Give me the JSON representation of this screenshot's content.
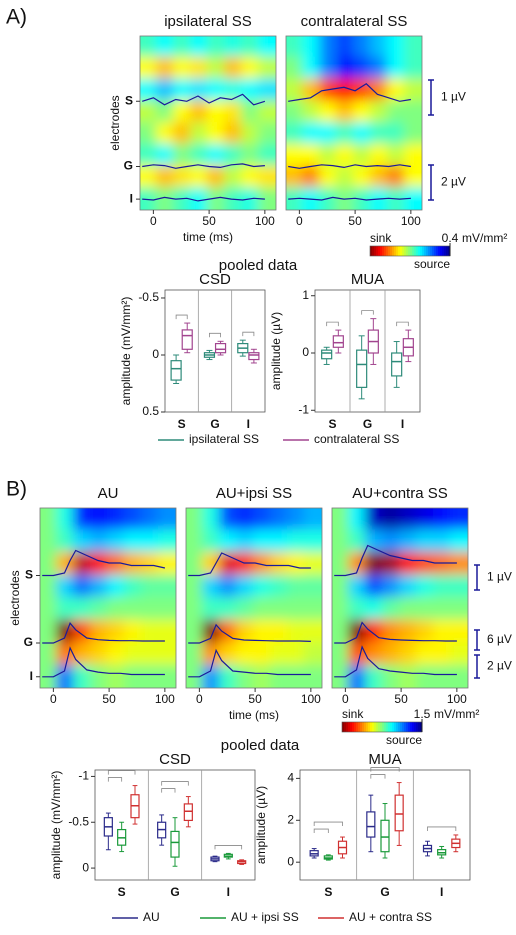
{
  "chart_data": [
    {
      "type": "heatmap",
      "panel": "A)",
      "title": "ipsilateral SS",
      "ylabel": "electrodes",
      "xlabel": "time (ms)",
      "xlim": [
        -12,
        110
      ],
      "xticks": [
        0,
        50,
        100
      ],
      "ylim": [
        0,
        16
      ],
      "yticks": [
        {
          "value": 6,
          "label": "S"
        },
        {
          "value": 12,
          "label": "G"
        },
        {
          "value": 15,
          "label": "I"
        }
      ],
      "clim": [
        -0.4,
        0.4
      ],
      "z": [
        [
          0.05,
          0.1,
          0.05,
          0.1,
          0.05,
          0.08,
          0.05,
          0.1
        ],
        [
          -0.1,
          -0.15,
          -0.1,
          -0.12,
          -0.05,
          -0.15,
          -0.1,
          -0.05
        ],
        [
          0.1,
          0.15,
          0.1,
          0.12,
          0.1,
          0.08,
          0.1,
          0.12
        ],
        [
          -0.05,
          0,
          -0.1,
          -0.15,
          -0.1,
          -0.12,
          0,
          -0.05
        ],
        [
          0,
          -0.1,
          -0.15,
          -0.05,
          -0.1,
          -0.15,
          -0.05,
          0
        ],
        [
          0.05,
          0.1,
          0,
          0.05,
          0.1,
          0.05,
          0,
          0.05
        ],
        [
          -0.1,
          -0.15,
          -0.12,
          -0.1,
          -0.15,
          -0.05,
          -0.1,
          -0.12
        ],
        [
          0.05,
          0,
          0.05,
          0.1,
          0,
          0.05,
          0.08,
          0
        ]
      ],
      "trace_x": [
        -10,
        0,
        10,
        20,
        30,
        40,
        50,
        60,
        70,
        80,
        90,
        100
      ],
      "traces": [
        [
          0,
          0.1,
          -0.1,
          0.05,
          0,
          0.15,
          -0.05,
          0.1,
          0.05,
          0.2,
          -0.1,
          0
        ],
        [
          0,
          0.1,
          0.05,
          -0.1,
          0,
          0.1,
          0,
          -0.05,
          0.1,
          0.15,
          0,
          0.05
        ],
        [
          0,
          -0.05,
          0.1,
          0,
          0.05,
          -0.1,
          0,
          0.1,
          0,
          -0.05,
          0.05,
          0
        ]
      ]
    },
    {
      "type": "heatmap",
      "title": "contralateral SS",
      "xlim": [
        -12,
        110
      ],
      "xticks": [
        0,
        50,
        100
      ],
      "ylim": [
        0,
        16
      ],
      "clim": [
        -0.4,
        0.4
      ],
      "z": [
        [
          0.05,
          0.1,
          0.2,
          0.25,
          0.2,
          0.15,
          0.1,
          0.05
        ],
        [
          0,
          0.1,
          0.2,
          0.3,
          0.25,
          0.2,
          0.1,
          0.05
        ],
        [
          -0.05,
          -0.15,
          -0.25,
          -0.3,
          -0.25,
          -0.2,
          -0.1,
          -0.05
        ],
        [
          0,
          -0.05,
          -0.1,
          -0.15,
          -0.1,
          -0.05,
          0,
          0
        ],
        [
          0.05,
          0.1,
          0.1,
          0.05,
          0.1,
          0.05,
          0.05,
          0
        ],
        [
          -0.1,
          -0.1,
          -0.05,
          -0.1,
          -0.05,
          -0.1,
          -0.05,
          -0.1
        ],
        [
          -0.15,
          -0.2,
          -0.1,
          -0.05,
          -0.1,
          -0.15,
          -0.2,
          -0.1
        ],
        [
          0.05,
          0.1,
          0.05,
          0,
          0.05,
          0.1,
          0.05,
          0.1
        ]
      ],
      "trace_x": [
        -10,
        0,
        10,
        20,
        30,
        40,
        50,
        60,
        70,
        80,
        90,
        100
      ],
      "traces": [
        [
          0,
          0.05,
          0.1,
          0.3,
          0.35,
          0.4,
          0.3,
          0.5,
          0.2,
          0.1,
          0,
          0.05
        ],
        [
          0,
          -0.1,
          0,
          0.1,
          0.05,
          -0.05,
          0.1,
          0,
          0.05,
          0,
          0.1,
          0
        ],
        [
          0,
          0.05,
          0,
          -0.05,
          0.1,
          0,
          0.05,
          -0.05,
          0,
          0.05,
          0,
          0.05
        ]
      ],
      "scalebars": [
        "1 µV",
        "2 µV"
      ],
      "colorbar": {
        "low": "sink",
        "high": "source",
        "unit": "mV/mm²",
        "ticks": [
          0.4
        ]
      }
    },
    {
      "type": "box",
      "suptitle": "pooled data",
      "title": "CSD",
      "ylabel": "amplitude (mV/mm²)",
      "categories": [
        "S",
        "G",
        "I"
      ],
      "ylim": [
        -0.57,
        0.5
      ],
      "yticks": [
        -0.5,
        0,
        0.5
      ],
      "inverted": true,
      "series": [
        {
          "name": "ipsilateral SS",
          "color": "#2e8b7a",
          "boxes": [
            [
              0,
              0.05,
              0.12,
              0.22,
              0.25
            ],
            [
              -0.04,
              -0.02,
              0,
              0.02,
              0.04
            ],
            [
              -0.13,
              -0.1,
              -0.06,
              -0.02,
              0.01
            ]
          ]
        },
        {
          "name": "contralateral SS",
          "color": "#a2458f",
          "boxes": [
            [
              -0.28,
              -0.22,
              -0.17,
              -0.05,
              -0.02
            ],
            [
              -0.12,
              -0.1,
              -0.05,
              -0.02,
              0
            ],
            [
              -0.05,
              -0.02,
              0,
              0.04,
              0.07
            ]
          ]
        }
      ]
    },
    {
      "type": "box",
      "title": "MUA",
      "ylabel": "amplitude (µV)",
      "categories": [
        "S",
        "G",
        "I"
      ],
      "ylim": [
        -1.03,
        1.1
      ],
      "yticks": [
        -1,
        0,
        1
      ],
      "series": [
        {
          "color": "#2e8b7a",
          "boxes": [
            [
              -0.2,
              -0.1,
              0,
              0.05,
              0.1
            ],
            [
              -0.8,
              -0.6,
              -0.2,
              0.05,
              0.3
            ],
            [
              -0.6,
              -0.4,
              -0.15,
              0,
              0.2
            ]
          ]
        },
        {
          "color": "#a2458f",
          "boxes": [
            [
              0,
              0.1,
              0.18,
              0.3,
              0.4
            ],
            [
              -0.2,
              0,
              0.2,
              0.4,
              0.6
            ],
            [
              -0.15,
              -0.05,
              0.1,
              0.25,
              0.4
            ]
          ]
        }
      ]
    },
    {
      "type": "heatmap",
      "panel": "B)",
      "title": "AU",
      "ylabel": "electrodes",
      "xlim": [
        -12,
        110
      ],
      "xticks": [
        0,
        50,
        100
      ],
      "ylim": [
        0,
        16
      ],
      "yticks": [
        {
          "value": 6,
          "label": "S"
        },
        {
          "value": 12,
          "label": "G"
        },
        {
          "value": 15,
          "label": "I"
        }
      ],
      "clim": [
        -1.5,
        1.5
      ],
      "z": [
        [
          0,
          0.3,
          1.0,
          1.1,
          1.0,
          0.9,
          0.8,
          0.7
        ],
        [
          0,
          0.2,
          0.5,
          0.6,
          0.5,
          0.4,
          0.4,
          0.3
        ],
        [
          0,
          -0.6,
          -1.3,
          -1.1,
          -0.8,
          -0.6,
          -0.5,
          -0.4
        ],
        [
          0,
          0.5,
          0.8,
          0.6,
          0.4,
          0.2,
          0.1,
          0.1
        ],
        [
          0,
          0.2,
          0.2,
          0.1,
          0,
          0,
          0,
          0
        ],
        [
          0,
          -1.5,
          -0.9,
          -0.6,
          -0.5,
          -0.4,
          -0.3,
          -0.3
        ],
        [
          0,
          -0.8,
          -0.6,
          -0.5,
          -0.4,
          -0.3,
          -0.3,
          -0.3
        ],
        [
          0,
          0.8,
          0.2,
          0,
          -0.1,
          0,
          0,
          0
        ]
      ],
      "trace_x": [
        -10,
        0,
        10,
        15,
        20,
        30,
        40,
        50,
        60,
        70,
        80,
        90,
        100
      ],
      "traces": [
        [
          0,
          0,
          0.1,
          0.6,
          1.0,
          0.8,
          0.6,
          0.5,
          0.5,
          0.4,
          0.4,
          0.4,
          0.3
        ],
        [
          0,
          0,
          1.5,
          6.0,
          4.0,
          1.5,
          1.0,
          0.8,
          0.7,
          0.7,
          0.6,
          0.6,
          0.6
        ],
        [
          0,
          0,
          0.5,
          2.5,
          1.5,
          0.6,
          0.4,
          0.3,
          0.3,
          0.2,
          0.2,
          0.2,
          0.2
        ]
      ]
    },
    {
      "type": "heatmap",
      "title": "AU+ipsi SS",
      "xlabel": "time (ms)",
      "xlim": [
        -12,
        110
      ],
      "xticks": [
        0,
        50,
        100
      ],
      "ylim": [
        0,
        16
      ],
      "clim": [
        -1.5,
        1.5
      ],
      "z": [
        [
          0,
          0.3,
          0.9,
          1.0,
          0.9,
          0.8,
          0.7,
          0.6
        ],
        [
          0,
          0.2,
          0.4,
          0.5,
          0.4,
          0.4,
          0.3,
          0.3
        ],
        [
          0,
          -0.5,
          -1.2,
          -1.0,
          -0.7,
          -0.5,
          -0.4,
          -0.3
        ],
        [
          0,
          0.5,
          0.7,
          0.5,
          0.3,
          0.2,
          0.1,
          0.1
        ],
        [
          0,
          0.2,
          0.2,
          0.1,
          0,
          0,
          0,
          0
        ],
        [
          0,
          -1.5,
          -0.8,
          -0.5,
          -0.4,
          -0.4,
          -0.3,
          -0.3
        ],
        [
          0,
          -0.7,
          -0.5,
          -0.4,
          -0.4,
          -0.3,
          -0.3,
          -0.2
        ],
        [
          0,
          0.7,
          0.2,
          0,
          -0.1,
          0,
          0,
          0
        ]
      ],
      "trace_x": [
        -10,
        0,
        10,
        15,
        20,
        30,
        40,
        50,
        60,
        70,
        80,
        90,
        100
      ],
      "traces": [
        [
          0,
          0,
          0.1,
          0.5,
          0.9,
          0.7,
          0.5,
          0.5,
          0.4,
          0.4,
          0.4,
          0.3,
          0.3
        ],
        [
          0,
          0,
          1.4,
          5.5,
          3.6,
          1.4,
          0.9,
          0.8,
          0.7,
          0.6,
          0.6,
          0.6,
          0.5
        ],
        [
          0,
          0,
          0.5,
          2.3,
          1.4,
          0.5,
          0.4,
          0.3,
          0.3,
          0.2,
          0.2,
          0.2,
          0.2
        ]
      ]
    },
    {
      "type": "heatmap",
      "title": "AU+contra SS",
      "xlim": [
        -12,
        110
      ],
      "xticks": [
        0,
        50,
        100
      ],
      "ylim": [
        0,
        16
      ],
      "clim": [
        -1.5,
        1.5
      ],
      "z": [
        [
          0,
          0.4,
          1.3,
          1.4,
          1.3,
          1.2,
          1.1,
          1.0
        ],
        [
          0,
          0.2,
          0.6,
          0.7,
          0.6,
          0.5,
          0.5,
          0.4
        ],
        [
          0,
          -0.7,
          -1.5,
          -1.4,
          -1.1,
          -0.9,
          -0.8,
          -0.7
        ],
        [
          0,
          0.5,
          0.9,
          0.7,
          0.5,
          0.3,
          0.2,
          0.2
        ],
        [
          0,
          0.2,
          0.3,
          0.1,
          0,
          0,
          0,
          0
        ],
        [
          0,
          -1.5,
          -1.0,
          -0.7,
          -0.6,
          -0.5,
          -0.4,
          -0.4
        ],
        [
          0,
          -0.9,
          -0.7,
          -0.6,
          -0.5,
          -0.4,
          -0.4,
          -0.3
        ],
        [
          0,
          0.8,
          0.2,
          0,
          -0.1,
          0,
          0,
          0
        ]
      ],
      "trace_x": [
        -10,
        0,
        10,
        15,
        20,
        30,
        40,
        50,
        60,
        70,
        80,
        90,
        100
      ],
      "traces": [
        [
          0,
          0,
          0.1,
          0.7,
          1.2,
          1.0,
          0.8,
          0.7,
          0.6,
          0.6,
          0.5,
          0.5,
          0.5
        ],
        [
          0,
          0,
          1.6,
          6.2,
          4.2,
          1.6,
          1.1,
          0.9,
          0.8,
          0.7,
          0.7,
          0.6,
          0.6
        ],
        [
          0,
          0,
          0.6,
          2.6,
          1.6,
          0.7,
          0.5,
          0.4,
          0.3,
          0.3,
          0.2,
          0.2,
          0.2
        ]
      ],
      "scalebars": [
        "1 µV",
        "6 µV",
        "2 µV"
      ],
      "colorbar": {
        "low": "sink",
        "high": "source",
        "unit": "mV/mm²",
        "ticks": [
          1.5
        ]
      }
    },
    {
      "type": "box",
      "suptitle": "pooled data",
      "title": "CSD",
      "ylabel": "amplitude (mV/mm²)",
      "categories": [
        "S",
        "G",
        "I"
      ],
      "ylim": [
        -1.07,
        0.13
      ],
      "yticks": [
        -1,
        -0.5,
        0
      ],
      "inverted": true,
      "series": [
        {
          "name": "AU",
          "color": "#2b2b8a",
          "boxes": [
            [
              -0.6,
              -0.55,
              -0.45,
              -0.35,
              -0.2
            ],
            [
              -0.58,
              -0.5,
              -0.42,
              -0.33,
              -0.25
            ],
            [
              -0.13,
              -0.12,
              -0.1,
              -0.08,
              -0.07
            ]
          ]
        },
        {
          "name": "AU + ipsi SS",
          "color": "#1a9a3a",
          "boxes": [
            [
              -0.5,
              -0.42,
              -0.33,
              -0.25,
              -0.18
            ],
            [
              -0.55,
              -0.4,
              -0.28,
              -0.12,
              -0.02
            ],
            [
              -0.16,
              -0.15,
              -0.13,
              -0.12,
              -0.1
            ]
          ]
        },
        {
          "name": "AU + contra SS",
          "color": "#d03030",
          "boxes": [
            [
              -0.9,
              -0.8,
              -0.68,
              -0.55,
              -0.48
            ],
            [
              -0.78,
              -0.7,
              -0.62,
              -0.52,
              -0.45
            ],
            [
              -0.09,
              -0.08,
              -0.07,
              -0.05,
              -0.04
            ]
          ]
        }
      ]
    },
    {
      "type": "box",
      "title": "MUA",
      "ylabel": "amplitude (µV)",
      "categories": [
        "S",
        "G",
        "I"
      ],
      "ylim": [
        -0.85,
        4.4
      ],
      "yticks": [
        0,
        2,
        4
      ],
      "series": [
        {
          "color": "#2b2b8a",
          "boxes": [
            [
              0.2,
              0.3,
              0.4,
              0.55,
              0.65
            ],
            [
              0.5,
              1.2,
              1.7,
              2.4,
              3.2
            ],
            [
              0.3,
              0.5,
              0.65,
              0.8,
              1.0
            ]
          ]
        },
        {
          "color": "#1a9a3a",
          "boxes": [
            [
              0.1,
              0.15,
              0.2,
              0.3,
              0.35
            ],
            [
              0.2,
              0.5,
              1.2,
              2.0,
              2.8
            ],
            [
              0.2,
              0.35,
              0.45,
              0.6,
              0.75
            ]
          ]
        },
        {
          "color": "#d03030",
          "boxes": [
            [
              0.2,
              0.4,
              0.7,
              1.0,
              1.2
            ],
            [
              0.8,
              1.5,
              2.3,
              3.2,
              3.8
            ],
            [
              0.5,
              0.7,
              0.9,
              1.1,
              1.3
            ]
          ]
        }
      ]
    }
  ]
}
